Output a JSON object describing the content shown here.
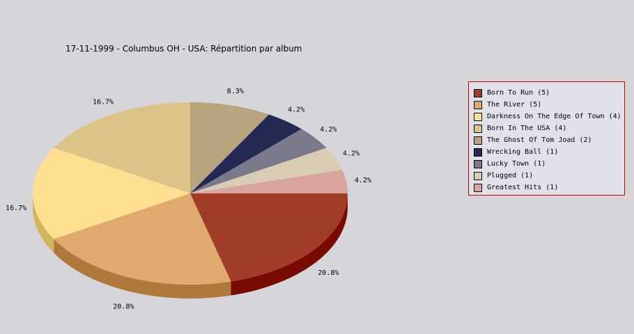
{
  "chart_data": {
    "type": "pie",
    "title": "17-11-1999 - Columbus OH - USA:  Répartition par album",
    "slices": [
      {
        "label": "Born To Run (5)",
        "value": 5,
        "pct": "20.8%",
        "color": "#a03c28",
        "side": "#780a00"
      },
      {
        "label": "The River (5)",
        "value": 5,
        "pct": "20.8%",
        "color": "#e0aa6e",
        "side": "#b0783a"
      },
      {
        "label": "Darkness On The Edge Of Town (4)",
        "value": 4,
        "pct": "16.7%",
        "color": "#ffdf90",
        "side": "#d2b45a"
      },
      {
        "label": "Born In The USA (4)",
        "value": 4,
        "pct": "16.7%",
        "color": "#dcc488",
        "side": "#aa9458"
      },
      {
        "label": "The Ghost Of Tom Joad (2)",
        "value": 2,
        "pct": "8.3%",
        "color": "#b8a47e",
        "side": "#887450"
      },
      {
        "label": "Wrecking Ball (1)",
        "value": 1,
        "pct": "4.2%",
        "color": "#232952",
        "side": "#0d1230"
      },
      {
        "label": "Lucky Town (1)",
        "value": 1,
        "pct": "4.2%",
        "color": "#7a7a8a",
        "side": "#505060"
      },
      {
        "label": "Plugged (1)",
        "value": 1,
        "pct": "4.2%",
        "color": "#d8ccb4",
        "side": "#a89c84"
      },
      {
        "label": "Greatest Hits (1)",
        "value": 1,
        "pct": "4.2%",
        "color": "#d8a49c",
        "side": "#a8746c"
      }
    ]
  }
}
